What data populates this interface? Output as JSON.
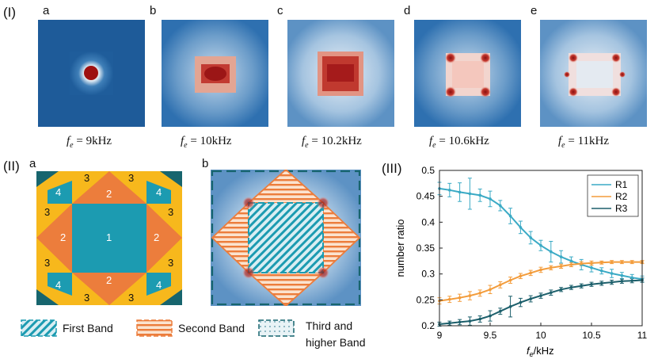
{
  "section_labels": {
    "I": "(I)",
    "II": "(II)",
    "III": "(III)"
  },
  "panel_I": [
    {
      "letter": "a",
      "var": "f",
      "sub": "e",
      "value": " = 9kHz"
    },
    {
      "letter": "b",
      "var": "f",
      "sub": "e",
      "value": " = 10kHz"
    },
    {
      "letter": "c",
      "var": "f",
      "sub": "e",
      "value": " = 10.2kHz"
    },
    {
      "letter": "d",
      "var": "f",
      "sub": "e",
      "value": " = 10.6kHz"
    },
    {
      "letter": "e",
      "var": "f",
      "sub": "e",
      "value": " = 11kHz"
    }
  ],
  "panel_II": {
    "a_label": "a",
    "b_label": "b",
    "zones": {
      "z1": "1",
      "z2": "2",
      "z3": "3",
      "z4": "4"
    }
  },
  "legend_bands": {
    "first": "First Band",
    "second": "Second Band",
    "third_line1": "Third and",
    "third_line2": "higher Band"
  },
  "colors": {
    "teal": "#1c9bb1",
    "orange": "#ec7d3c",
    "yellow": "#f7b81c",
    "dark_teal": "#17656e"
  },
  "chart_data": {
    "type": "line",
    "title": "",
    "xlabel_var": "f",
    "xlabel_sub": "e",
    "xlabel_unit": "/kHz",
    "ylabel": "number ratio",
    "xlim": [
      9,
      11
    ],
    "ylim": [
      0.2,
      0.5
    ],
    "xticks": [
      "9",
      "9.5",
      "10",
      "10.5",
      "11"
    ],
    "yticks": [
      "0.2",
      "0.25",
      "0.3",
      "0.35",
      "0.4",
      "0.45",
      "0.5"
    ],
    "legend_position": "top-right",
    "x": [
      9.0,
      9.1,
      9.2,
      9.3,
      9.4,
      9.5,
      9.6,
      9.7,
      9.8,
      9.9,
      10.0,
      10.1,
      10.2,
      10.3,
      10.4,
      10.5,
      10.6,
      10.7,
      10.8,
      10.9,
      11.0
    ],
    "series": [
      {
        "name": "R1",
        "color": "#3aaac5",
        "values": [
          0.465,
          0.462,
          0.458,
          0.455,
          0.452,
          0.445,
          0.432,
          0.412,
          0.39,
          0.37,
          0.355,
          0.343,
          0.333,
          0.325,
          0.318,
          0.312,
          0.306,
          0.301,
          0.297,
          0.293,
          0.29
        ],
        "errors": [
          0.012,
          0.013,
          0.018,
          0.03,
          0.012,
          0.015,
          0.01,
          0.015,
          0.012,
          0.012,
          0.01,
          0.02,
          0.012,
          0.008,
          0.01,
          0.008,
          0.006,
          0.008,
          0.006,
          0.006,
          0.006
        ]
      },
      {
        "name": "R2",
        "color": "#f39c3b",
        "values": [
          0.248,
          0.251,
          0.254,
          0.258,
          0.263,
          0.27,
          0.279,
          0.288,
          0.296,
          0.302,
          0.308,
          0.312,
          0.315,
          0.318,
          0.32,
          0.321,
          0.322,
          0.323,
          0.323,
          0.323,
          0.323
        ],
        "errors": [
          0.006,
          0.006,
          0.007,
          0.008,
          0.006,
          0.008,
          0.006,
          0.006,
          0.005,
          0.005,
          0.005,
          0.004,
          0.004,
          0.004,
          0.004,
          0.004,
          0.003,
          0.003,
          0.003,
          0.003,
          0.003
        ]
      },
      {
        "name": "R3",
        "color": "#1c5f6b",
        "values": [
          0.203,
          0.205,
          0.207,
          0.209,
          0.213,
          0.219,
          0.228,
          0.237,
          0.245,
          0.252,
          0.258,
          0.264,
          0.27,
          0.274,
          0.277,
          0.28,
          0.282,
          0.284,
          0.286,
          0.287,
          0.288
        ],
        "errors": [
          0.004,
          0.004,
          0.005,
          0.008,
          0.006,
          0.01,
          0.006,
          0.02,
          0.008,
          0.006,
          0.005,
          0.005,
          0.004,
          0.004,
          0.004,
          0.004,
          0.004,
          0.004,
          0.004,
          0.004,
          0.004
        ]
      }
    ]
  }
}
